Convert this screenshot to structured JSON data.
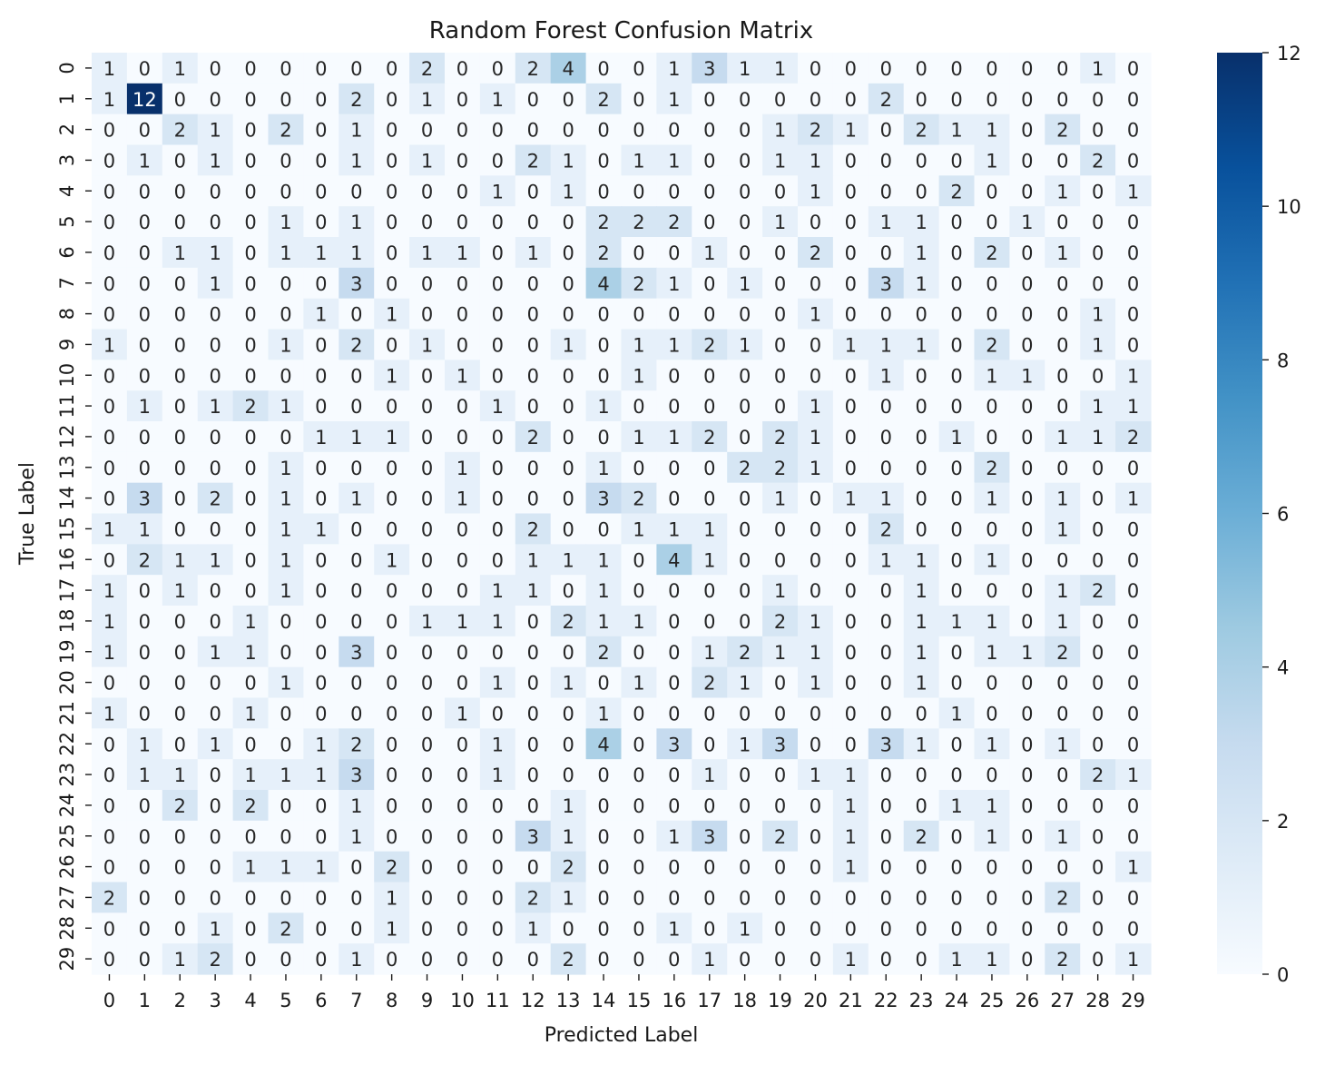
{
  "chart_data": {
    "type": "heatmap",
    "title": "Random Forest Confusion Matrix",
    "xlabel": "Predicted Label",
    "ylabel": "True Label",
    "x_categories": [
      "0",
      "1",
      "2",
      "3",
      "4",
      "5",
      "6",
      "7",
      "8",
      "9",
      "10",
      "11",
      "12",
      "13",
      "14",
      "15",
      "16",
      "17",
      "18",
      "19",
      "20",
      "21",
      "22",
      "23",
      "24",
      "25",
      "26",
      "27",
      "28",
      "29"
    ],
    "y_categories": [
      "0",
      "1",
      "2",
      "3",
      "4",
      "5",
      "6",
      "7",
      "8",
      "9",
      "10",
      "11",
      "12",
      "13",
      "14",
      "15",
      "16",
      "17",
      "18",
      "19",
      "20",
      "21",
      "22",
      "23",
      "24",
      "25",
      "26",
      "27",
      "28",
      "29"
    ],
    "colorbar": {
      "min": 0,
      "max": 12,
      "ticks": [
        0,
        2,
        4,
        6,
        8,
        10,
        12
      ],
      "colormap": "Blues"
    },
    "colors": {
      "low": "#f7fbff",
      "high": "#08306b"
    },
    "matrix": [
      [
        1,
        0,
        1,
        0,
        0,
        0,
        0,
        0,
        0,
        2,
        0,
        0,
        2,
        4,
        0,
        0,
        1,
        3,
        1,
        1,
        0,
        0,
        0,
        0,
        0,
        0,
        0,
        0,
        1,
        0
      ],
      [
        1,
        12,
        0,
        0,
        0,
        0,
        0,
        2,
        0,
        1,
        0,
        1,
        0,
        0,
        2,
        0,
        1,
        0,
        0,
        0,
        0,
        0,
        2,
        0,
        0,
        0,
        0,
        0,
        0,
        0
      ],
      [
        0,
        0,
        2,
        1,
        0,
        2,
        0,
        1,
        0,
        0,
        0,
        0,
        0,
        0,
        0,
        0,
        0,
        0,
        0,
        1,
        2,
        1,
        0,
        2,
        1,
        1,
        0,
        2,
        0,
        0
      ],
      [
        0,
        1,
        0,
        1,
        0,
        0,
        0,
        1,
        0,
        1,
        0,
        0,
        2,
        1,
        0,
        1,
        1,
        0,
        0,
        1,
        1,
        0,
        0,
        0,
        0,
        1,
        0,
        0,
        2,
        0
      ],
      [
        0,
        0,
        0,
        0,
        0,
        0,
        0,
        0,
        0,
        0,
        0,
        1,
        0,
        1,
        0,
        0,
        0,
        0,
        0,
        0,
        1,
        0,
        0,
        0,
        2,
        0,
        0,
        1,
        0,
        1
      ],
      [
        0,
        0,
        0,
        0,
        0,
        1,
        0,
        1,
        0,
        0,
        0,
        0,
        0,
        0,
        2,
        2,
        2,
        0,
        0,
        1,
        0,
        0,
        1,
        1,
        0,
        0,
        1,
        0,
        0,
        0
      ],
      [
        0,
        0,
        1,
        1,
        0,
        1,
        1,
        1,
        0,
        1,
        1,
        0,
        1,
        0,
        2,
        0,
        0,
        1,
        0,
        0,
        2,
        0,
        0,
        1,
        0,
        2,
        0,
        1,
        0,
        0
      ],
      [
        0,
        0,
        0,
        1,
        0,
        0,
        0,
        3,
        0,
        0,
        0,
        0,
        0,
        0,
        4,
        2,
        1,
        0,
        1,
        0,
        0,
        0,
        3,
        1,
        0,
        0,
        0,
        0,
        0,
        0
      ],
      [
        0,
        0,
        0,
        0,
        0,
        0,
        1,
        0,
        1,
        0,
        0,
        0,
        0,
        0,
        0,
        0,
        0,
        0,
        0,
        0,
        1,
        0,
        0,
        0,
        0,
        0,
        0,
        0,
        1,
        0
      ],
      [
        1,
        0,
        0,
        0,
        0,
        1,
        0,
        2,
        0,
        1,
        0,
        0,
        0,
        1,
        0,
        1,
        1,
        2,
        1,
        0,
        0,
        1,
        1,
        1,
        0,
        2,
        0,
        0,
        1,
        0
      ],
      [
        0,
        0,
        0,
        0,
        0,
        0,
        0,
        0,
        1,
        0,
        1,
        0,
        0,
        0,
        0,
        1,
        0,
        0,
        0,
        0,
        0,
        0,
        1,
        0,
        0,
        1,
        1,
        0,
        0,
        1
      ],
      [
        0,
        1,
        0,
        1,
        2,
        1,
        0,
        0,
        0,
        0,
        0,
        1,
        0,
        0,
        1,
        0,
        0,
        0,
        0,
        0,
        1,
        0,
        0,
        0,
        0,
        0,
        0,
        0,
        1,
        1
      ],
      [
        0,
        0,
        0,
        0,
        0,
        0,
        1,
        1,
        1,
        0,
        0,
        0,
        2,
        0,
        0,
        1,
        1,
        2,
        0,
        2,
        1,
        0,
        0,
        0,
        1,
        0,
        0,
        1,
        1,
        2
      ],
      [
        0,
        0,
        0,
        0,
        0,
        1,
        0,
        0,
        0,
        0,
        1,
        0,
        0,
        0,
        1,
        0,
        0,
        0,
        2,
        2,
        1,
        0,
        0,
        0,
        0,
        2,
        0,
        0,
        0,
        0
      ],
      [
        0,
        3,
        0,
        2,
        0,
        1,
        0,
        1,
        0,
        0,
        1,
        0,
        0,
        0,
        3,
        2,
        0,
        0,
        0,
        1,
        0,
        1,
        1,
        0,
        0,
        1,
        0,
        1,
        0,
        1
      ],
      [
        1,
        1,
        0,
        0,
        0,
        1,
        1,
        0,
        0,
        0,
        0,
        0,
        2,
        0,
        0,
        1,
        1,
        1,
        0,
        0,
        0,
        0,
        2,
        0,
        0,
        0,
        0,
        1,
        0,
        0
      ],
      [
        0,
        2,
        1,
        1,
        0,
        1,
        0,
        0,
        1,
        0,
        0,
        0,
        1,
        1,
        1,
        0,
        4,
        1,
        0,
        0,
        0,
        0,
        1,
        1,
        0,
        1,
        0,
        0,
        0,
        0
      ],
      [
        1,
        0,
        1,
        0,
        0,
        1,
        0,
        0,
        0,
        0,
        0,
        1,
        1,
        0,
        1,
        0,
        0,
        0,
        0,
        1,
        0,
        0,
        0,
        1,
        0,
        0,
        0,
        1,
        2,
        0
      ],
      [
        1,
        0,
        0,
        0,
        1,
        0,
        0,
        0,
        0,
        1,
        1,
        1,
        0,
        2,
        1,
        1,
        0,
        0,
        0,
        2,
        1,
        0,
        0,
        1,
        1,
        1,
        0,
        1,
        0,
        0
      ],
      [
        1,
        0,
        0,
        1,
        1,
        0,
        0,
        3,
        0,
        0,
        0,
        0,
        0,
        0,
        2,
        0,
        0,
        1,
        2,
        1,
        1,
        0,
        0,
        1,
        0,
        1,
        1,
        2,
        0,
        0
      ],
      [
        0,
        0,
        0,
        0,
        0,
        1,
        0,
        0,
        0,
        0,
        0,
        1,
        0,
        1,
        0,
        1,
        0,
        2,
        1,
        0,
        1,
        0,
        0,
        1,
        0,
        0,
        0,
        0,
        0,
        0
      ],
      [
        1,
        0,
        0,
        0,
        1,
        0,
        0,
        0,
        0,
        0,
        1,
        0,
        0,
        0,
        1,
        0,
        0,
        0,
        0,
        0,
        0,
        0,
        0,
        0,
        1,
        0,
        0,
        0,
        0,
        0
      ],
      [
        0,
        1,
        0,
        1,
        0,
        0,
        1,
        2,
        0,
        0,
        0,
        1,
        0,
        0,
        4,
        0,
        3,
        0,
        1,
        3,
        0,
        0,
        3,
        1,
        0,
        1,
        0,
        1,
        0,
        0
      ],
      [
        0,
        1,
        1,
        0,
        1,
        1,
        1,
        3,
        0,
        0,
        0,
        1,
        0,
        0,
        0,
        0,
        0,
        1,
        0,
        0,
        1,
        1,
        0,
        0,
        0,
        0,
        0,
        0,
        2,
        1
      ],
      [
        0,
        0,
        2,
        0,
        2,
        0,
        0,
        1,
        0,
        0,
        0,
        0,
        0,
        1,
        0,
        0,
        0,
        0,
        0,
        0,
        0,
        1,
        0,
        0,
        1,
        1,
        0,
        0,
        0,
        0
      ],
      [
        0,
        0,
        0,
        0,
        0,
        0,
        0,
        1,
        0,
        0,
        0,
        0,
        3,
        1,
        0,
        0,
        1,
        3,
        0,
        2,
        0,
        1,
        0,
        2,
        0,
        1,
        0,
        1,
        0,
        0
      ],
      [
        0,
        0,
        0,
        0,
        1,
        1,
        1,
        0,
        2,
        0,
        0,
        0,
        0,
        2,
        0,
        0,
        0,
        0,
        0,
        0,
        0,
        1,
        0,
        0,
        0,
        0,
        0,
        0,
        0,
        1
      ],
      [
        2,
        0,
        0,
        0,
        0,
        0,
        0,
        0,
        1,
        0,
        0,
        0,
        2,
        1,
        0,
        0,
        0,
        0,
        0,
        0,
        0,
        0,
        0,
        0,
        0,
        0,
        0,
        2,
        0,
        0
      ],
      [
        0,
        0,
        0,
        1,
        0,
        2,
        0,
        0,
        1,
        0,
        0,
        0,
        1,
        0,
        0,
        0,
        1,
        0,
        1,
        0,
        0,
        0,
        0,
        0,
        0,
        0,
        0,
        0,
        0,
        0
      ],
      [
        0,
        0,
        1,
        2,
        0,
        0,
        0,
        1,
        0,
        0,
        0,
        0,
        0,
        2,
        0,
        0,
        0,
        1,
        0,
        0,
        0,
        1,
        0,
        0,
        1,
        1,
        0,
        2,
        0,
        1
      ]
    ]
  }
}
